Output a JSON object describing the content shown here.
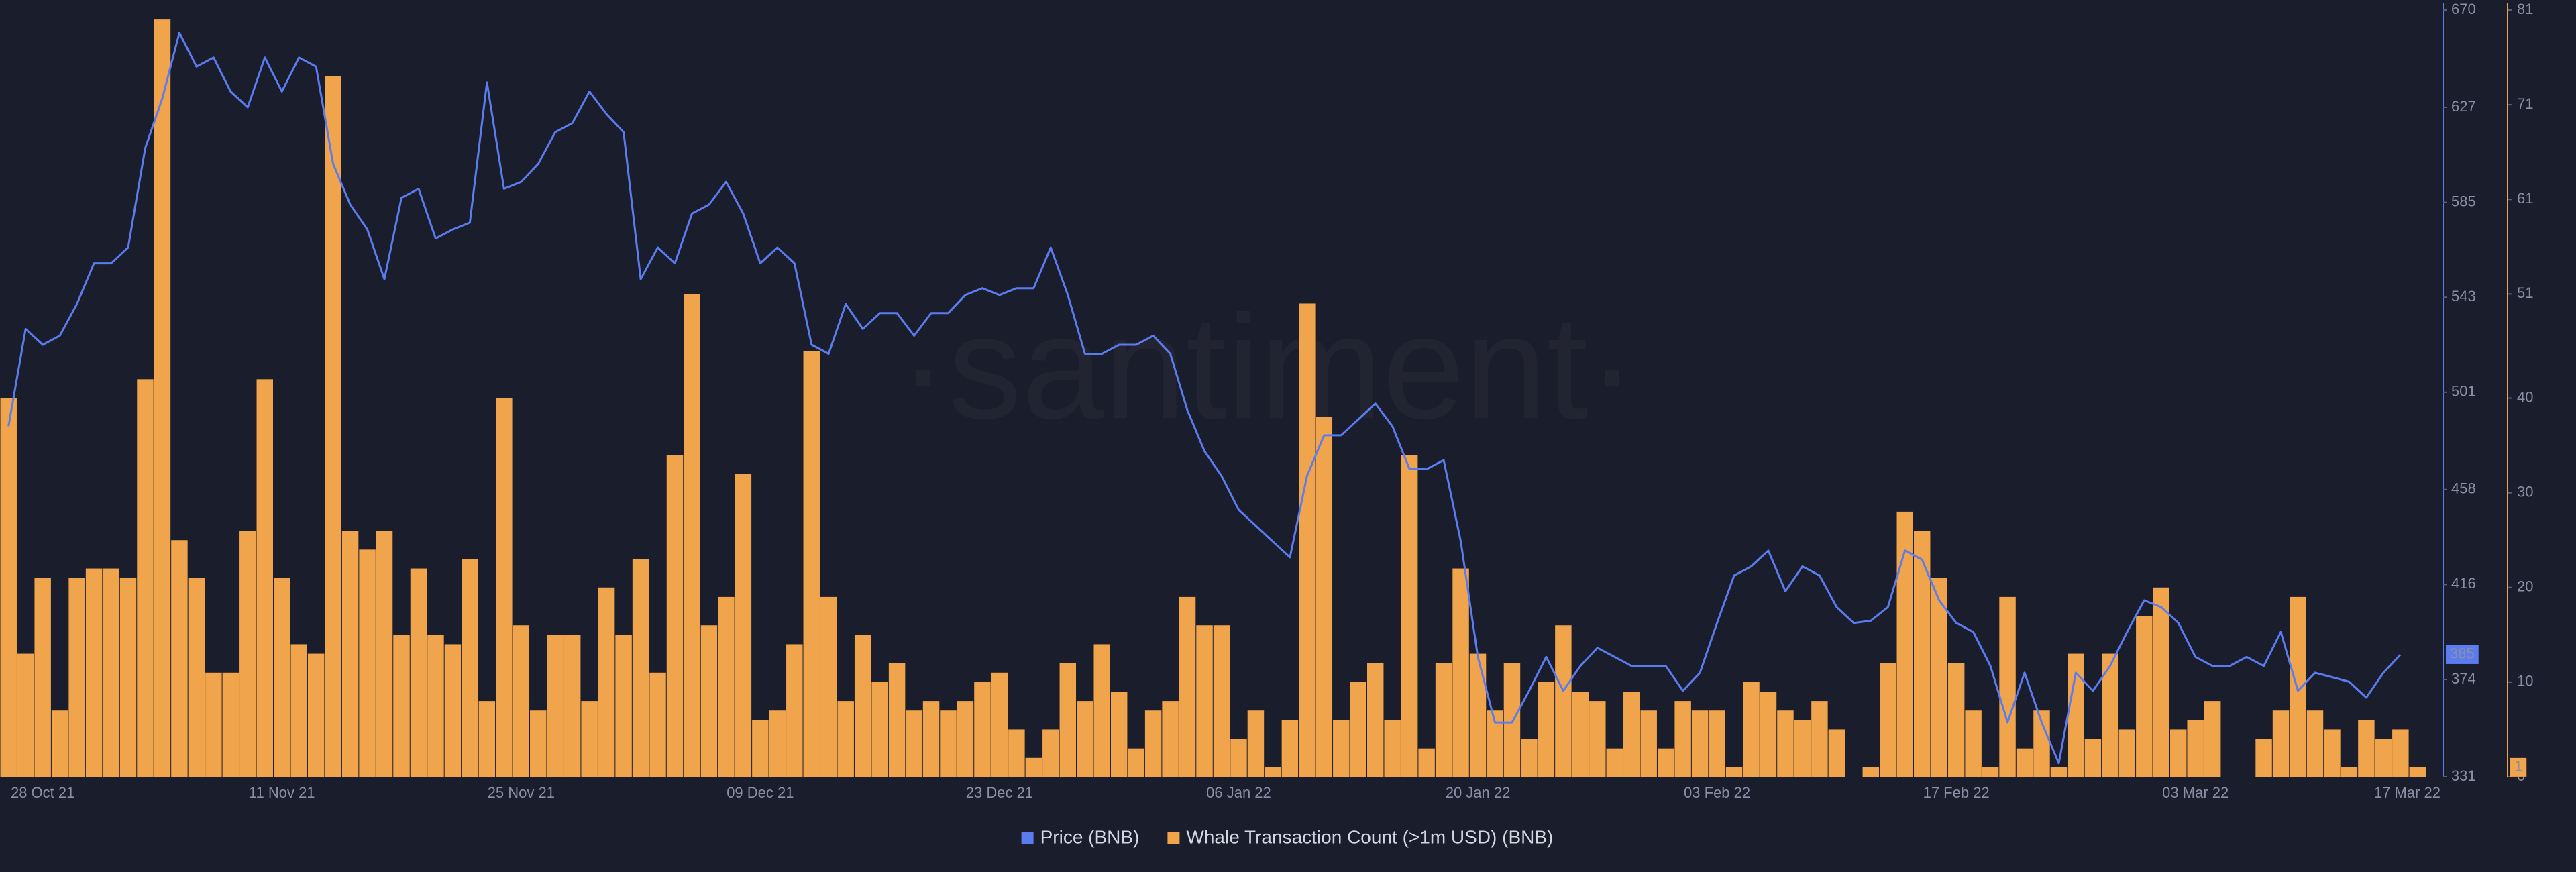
{
  "chart_data": {
    "type": "combo",
    "watermark": "·santiment·",
    "categories": [
      null,
      null,
      "28 Oct 21",
      null,
      null,
      null,
      null,
      null,
      null,
      null,
      null,
      null,
      null,
      null,
      null,
      null,
      "11 Nov 21",
      null,
      null,
      null,
      null,
      null,
      null,
      null,
      null,
      null,
      null,
      null,
      null,
      null,
      "25 Nov 21",
      null,
      null,
      null,
      null,
      null,
      null,
      null,
      null,
      null,
      null,
      null,
      null,
      null,
      "09 Dec 21",
      null,
      null,
      null,
      null,
      null,
      null,
      null,
      null,
      null,
      null,
      null,
      null,
      null,
      "23 Dec 21",
      null,
      null,
      null,
      null,
      null,
      null,
      null,
      null,
      null,
      null,
      null,
      null,
      null,
      "06 Jan 22",
      null,
      null,
      null,
      null,
      null,
      null,
      null,
      null,
      null,
      null,
      null,
      null,
      null,
      "20 Jan 22",
      null,
      null,
      null,
      null,
      null,
      null,
      null,
      null,
      null,
      null,
      null,
      null,
      null,
      "03 Feb 22",
      null,
      null,
      null,
      null,
      null,
      null,
      null,
      null,
      null,
      null,
      null,
      null,
      null,
      "17 Feb 22",
      null,
      null,
      null,
      null,
      null,
      null,
      null,
      null,
      null,
      null,
      null,
      null,
      null,
      "03 Mar 22",
      null,
      null,
      null,
      null,
      null,
      null,
      null,
      null,
      null,
      null,
      null,
      null,
      null,
      "17 Mar 22"
    ],
    "series": [
      {
        "name": "Price (BNB)",
        "type": "line",
        "axis": "y",
        "color": "#5b7cf0",
        "values": [
          486,
          529,
          522,
          526,
          540,
          558,
          558,
          565,
          609,
          631,
          660,
          645,
          649,
          634,
          627,
          649,
          634,
          649,
          645,
          602,
          584,
          573,
          551,
          587,
          591,
          569,
          573,
          576,
          638,
          591,
          594,
          602,
          616,
          620,
          634,
          624,
          616,
          551,
          565,
          558,
          580,
          584,
          594,
          580,
          558,
          565,
          558,
          522,
          518,
          540,
          529,
          536,
          536,
          526,
          536,
          536,
          544,
          547,
          544,
          547,
          547,
          565,
          544,
          518,
          518,
          522,
          522,
          526,
          518,
          493,
          475,
          464,
          449,
          442,
          435,
          428,
          464,
          482,
          482,
          489,
          496,
          486,
          467,
          467,
          471,
          435,
          384,
          355,
          355,
          369,
          384,
          369,
          380,
          388,
          384,
          380,
          380,
          380,
          369,
          377,
          399,
          420,
          424,
          431,
          413,
          424,
          420,
          406,
          399,
          400,
          406,
          431,
          427,
          409,
          399,
          395,
          380,
          355,
          377,
          355,
          337,
          377,
          369,
          380,
          395,
          409,
          406,
          399,
          384,
          380,
          380,
          384,
          380,
          395,
          369,
          377,
          375,
          373,
          366,
          377,
          385,
          null,
          null
        ]
      },
      {
        "name": "Whale Transaction Count (>1m USD) (BNB)",
        "type": "bar",
        "axis": "y2",
        "color": "#f0a44b",
        "values": [
          40,
          13,
          21,
          7,
          21,
          22,
          22,
          21,
          42,
          80,
          25,
          21,
          11,
          11,
          26,
          42,
          21,
          14,
          13,
          74,
          26,
          24,
          26,
          15,
          22,
          15,
          14,
          23,
          8,
          40,
          16,
          7,
          15,
          15,
          8,
          20,
          15,
          23,
          11,
          34,
          51,
          16,
          19,
          32,
          6,
          7,
          14,
          45,
          19,
          8,
          15,
          10,
          12,
          7,
          8,
          7,
          8,
          10,
          11,
          5,
          2,
          5,
          12,
          8,
          14,
          9,
          3,
          7,
          8,
          19,
          16,
          16,
          4,
          7,
          1,
          6,
          50,
          38,
          6,
          10,
          12,
          6,
          34,
          3,
          12,
          22,
          13,
          7,
          12,
          4,
          10,
          16,
          9,
          8,
          3,
          9,
          7,
          3,
          8,
          7,
          7,
          1,
          10,
          9,
          7,
          6,
          8,
          5,
          0,
          1,
          12,
          28,
          26,
          21,
          12,
          7,
          1,
          19,
          3,
          7,
          1,
          13,
          4,
          13,
          5,
          17,
          20,
          5,
          6,
          8,
          0,
          0,
          4,
          7,
          19,
          7,
          5,
          1,
          6,
          4,
          5,
          1,
          null
        ]
      }
    ],
    "ylim": [
      331,
      670
    ],
    "yticks": [
      331,
      374,
      416,
      458,
      501,
      543,
      585,
      627,
      670
    ],
    "y2lim": [
      0,
      81
    ],
    "y2ticks": [
      0,
      10,
      20,
      30,
      40,
      51,
      61,
      71,
      81
    ],
    "grid": false
  }
}
